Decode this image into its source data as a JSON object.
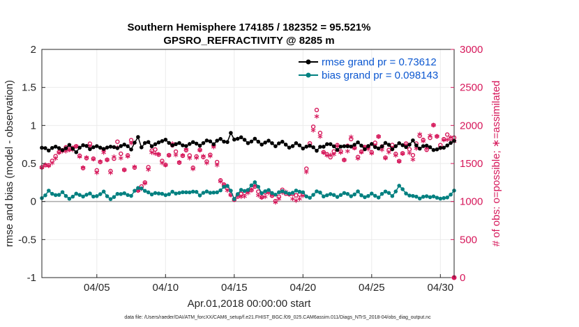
{
  "chart_data": {
    "type": "line",
    "title_line1": "Southern Hemisphere 174185 / 182352 = 95.521%",
    "title_line2": "GPSRO_REFRACTIVITY @ 8285 m",
    "ylabel_left": "rmse and bias (model - observation)",
    "ylabel_right": "# of obs: o=possible; ∗=assimilated",
    "xlabel": "Apr.01,2018 00:00:00 start",
    "footnote": "data file: /Users/raeder/DAI/ATM_forcXX/CAM6_setup/f.e21.FHIST_BGC.f09_025.CAM6assim.011/Diags_NTrS_2018-04/obs_diag_output.nc",
    "x_range": [
      1,
      31
    ],
    "ylim_left": [
      -1,
      2
    ],
    "ylim_right": [
      0,
      3000
    ],
    "y_ticks_left": [
      "-1",
      "-0.5",
      "0",
      "0.5",
      "1",
      "1.5",
      "2"
    ],
    "y_ticks_right": [
      "0",
      "500",
      "1000",
      "1500",
      "2000",
      "2500",
      "3000"
    ],
    "x_ticks": [
      {
        "value": 5,
        "label": "04/05"
      },
      {
        "value": 10,
        "label": "04/10"
      },
      {
        "value": 15,
        "label": "04/15"
      },
      {
        "value": 20,
        "label": "04/20"
      },
      {
        "value": 25,
        "label": "04/25"
      },
      {
        "value": 30,
        "label": "04/30"
      }
    ],
    "legend": [
      "rmse grand pr = 0.73612",
      "bias grand pr = 0.098143"
    ],
    "colors": {
      "rmse": "#000000",
      "bias": "#008080",
      "count": "#d6175a",
      "zero_line": "#aaaaaa"
    },
    "series": [
      {
        "name": "rmse",
        "anchors": [
          [
            1.0,
            0.71
          ],
          [
            1.5,
            0.67
          ],
          [
            2.0,
            0.72
          ],
          [
            2.5,
            0.69
          ],
          [
            3.0,
            0.73
          ],
          [
            3.5,
            0.66
          ],
          [
            4.0,
            0.74
          ],
          [
            4.5,
            0.7
          ],
          [
            5.0,
            0.72
          ],
          [
            5.5,
            0.7
          ],
          [
            6.0,
            0.73
          ],
          [
            6.5,
            0.69
          ],
          [
            7.0,
            0.75
          ],
          [
            7.5,
            0.68
          ],
          [
            8.0,
            0.84
          ],
          [
            8.3,
            0.7
          ],
          [
            8.6,
            0.8
          ],
          [
            9.0,
            0.72
          ],
          [
            9.5,
            0.77
          ],
          [
            10.0,
            0.8
          ],
          [
            10.5,
            0.73
          ],
          [
            11.0,
            0.78
          ],
          [
            11.5,
            0.72
          ],
          [
            12.0,
            0.79
          ],
          [
            12.5,
            0.74
          ],
          [
            13.0,
            0.8
          ],
          [
            13.5,
            0.76
          ],
          [
            14.0,
            0.82
          ],
          [
            14.5,
            0.78
          ],
          [
            14.8,
            0.91
          ],
          [
            15.0,
            0.82
          ],
          [
            15.5,
            0.85
          ],
          [
            16.0,
            0.78
          ],
          [
            16.5,
            0.82
          ],
          [
            17.0,
            0.74
          ],
          [
            17.5,
            0.8
          ],
          [
            18.0,
            0.72
          ],
          [
            18.5,
            0.79
          ],
          [
            19.0,
            0.72
          ],
          [
            19.5,
            0.76
          ],
          [
            20.0,
            0.7
          ],
          [
            20.5,
            0.74
          ],
          [
            21.0,
            0.68
          ],
          [
            21.5,
            0.73
          ],
          [
            22.0,
            0.76
          ],
          [
            22.5,
            0.69
          ],
          [
            23.0,
            0.74
          ],
          [
            23.5,
            0.72
          ],
          [
            24.0,
            0.79
          ],
          [
            24.5,
            0.69
          ],
          [
            25.0,
            0.76
          ],
          [
            25.5,
            0.7
          ],
          [
            26.0,
            0.77
          ],
          [
            26.5,
            0.7
          ],
          [
            27.0,
            0.77
          ],
          [
            27.5,
            0.71
          ],
          [
            28.0,
            0.79
          ],
          [
            28.5,
            0.7
          ],
          [
            29.0,
            0.74
          ],
          [
            29.5,
            0.68
          ],
          [
            30.0,
            0.7
          ],
          [
            30.5,
            0.73
          ],
          [
            31.0,
            0.79
          ]
        ]
      },
      {
        "name": "bias",
        "anchors": [
          [
            1.0,
            0.05
          ],
          [
            1.5,
            0.13
          ],
          [
            2.0,
            0.08
          ],
          [
            2.5,
            0.11
          ],
          [
            3.0,
            0.04
          ],
          [
            3.5,
            0.09
          ],
          [
            4.0,
            0.07
          ],
          [
            4.5,
            0.1
          ],
          [
            5.0,
            0.06
          ],
          [
            5.5,
            0.12
          ],
          [
            6.0,
            0.04
          ],
          [
            6.5,
            0.09
          ],
          [
            7.0,
            0.1
          ],
          [
            7.5,
            0.08
          ],
          [
            8.0,
            0.19
          ],
          [
            8.5,
            0.14
          ],
          [
            9.0,
            0.1
          ],
          [
            9.5,
            0.12
          ],
          [
            10.0,
            0.09
          ],
          [
            10.5,
            0.13
          ],
          [
            11.0,
            0.1
          ],
          [
            11.5,
            0.12
          ],
          [
            12.0,
            0.14
          ],
          [
            12.5,
            0.09
          ],
          [
            13.0,
            0.13
          ],
          [
            13.5,
            0.11
          ],
          [
            14.0,
            0.16
          ],
          [
            14.5,
            0.2
          ],
          [
            14.8,
            0.12
          ],
          [
            15.0,
            0.03
          ],
          [
            15.5,
            0.14
          ],
          [
            16.0,
            0.16
          ],
          [
            16.5,
            0.24
          ],
          [
            17.0,
            0.12
          ],
          [
            17.5,
            0.15
          ],
          [
            18.0,
            0.1
          ],
          [
            18.5,
            0.15
          ],
          [
            19.0,
            0.09
          ],
          [
            19.5,
            0.14
          ],
          [
            20.0,
            0.11
          ],
          [
            20.5,
            0.04
          ],
          [
            21.0,
            0.13
          ],
          [
            21.5,
            0.08
          ],
          [
            22.0,
            0.1
          ],
          [
            22.5,
            0.06
          ],
          [
            23.0,
            0.1
          ],
          [
            23.5,
            0.08
          ],
          [
            24.0,
            0.13
          ],
          [
            24.5,
            0.05
          ],
          [
            25.0,
            0.11
          ],
          [
            25.5,
            0.06
          ],
          [
            26.0,
            0.12
          ],
          [
            26.5,
            0.08
          ],
          [
            27.0,
            0.2
          ],
          [
            27.5,
            0.1
          ],
          [
            28.0,
            0.08
          ],
          [
            28.5,
            0.04
          ],
          [
            29.0,
            0.07
          ],
          [
            29.5,
            0.06
          ],
          [
            30.0,
            0.03
          ],
          [
            30.5,
            0.05
          ],
          [
            31.0,
            0.13
          ]
        ]
      },
      {
        "name": "obs possible",
        "anchors": [
          [
            1.0,
            1450
          ],
          [
            1.5,
            1500
          ],
          [
            2.0,
            1600
          ],
          [
            2.5,
            1700
          ],
          [
            3.0,
            1680
          ],
          [
            3.5,
            1740
          ],
          [
            4.0,
            1430
          ],
          [
            4.5,
            1760
          ],
          [
            5.0,
            1400
          ],
          [
            5.5,
            1680
          ],
          [
            6.0,
            1420
          ],
          [
            6.5,
            1760
          ],
          [
            7.0,
            1440
          ],
          [
            7.5,
            1780
          ],
          [
            8.0,
            1150
          ],
          [
            8.5,
            1240
          ],
          [
            9.0,
            1690
          ],
          [
            9.5,
            1620
          ],
          [
            10.0,
            1480
          ],
          [
            10.5,
            1760
          ],
          [
            11.0,
            1520
          ],
          [
            11.5,
            1700
          ],
          [
            12.0,
            1460
          ],
          [
            12.5,
            1680
          ],
          [
            13.0,
            1520
          ],
          [
            13.5,
            1720
          ],
          [
            14.0,
            1300
          ],
          [
            14.5,
            1180
          ],
          [
            15.0,
            1050
          ],
          [
            15.5,
            1090
          ],
          [
            16.0,
            1120
          ],
          [
            16.5,
            1200
          ],
          [
            17.0,
            1060
          ],
          [
            17.5,
            1140
          ],
          [
            18.0,
            1020
          ],
          [
            18.5,
            1140
          ],
          [
            19.0,
            1110
          ],
          [
            19.5,
            1060
          ],
          [
            20.0,
            1070
          ],
          [
            20.5,
            1750
          ],
          [
            21.0,
            2200
          ],
          [
            21.5,
            1660
          ],
          [
            22.0,
            1600
          ],
          [
            22.5,
            1730
          ],
          [
            23.0,
            1560
          ],
          [
            23.5,
            1850
          ],
          [
            24.0,
            1580
          ],
          [
            24.5,
            1740
          ],
          [
            25.0,
            1650
          ],
          [
            25.5,
            1850
          ],
          [
            26.0,
            1600
          ],
          [
            26.5,
            1720
          ],
          [
            27.0,
            1560
          ],
          [
            27.5,
            1750
          ],
          [
            28.0,
            1600
          ],
          [
            28.5,
            1880
          ],
          [
            29.0,
            1700
          ],
          [
            29.5,
            2030
          ],
          [
            30.0,
            1740
          ],
          [
            30.5,
            1860
          ],
          [
            31.0,
            1840
          ]
        ]
      },
      {
        "name": "obs assimilated",
        "anchors": [
          [
            1.0,
            1420
          ],
          [
            1.5,
            1460
          ],
          [
            2.0,
            1560
          ],
          [
            2.5,
            1660
          ],
          [
            3.0,
            1640
          ],
          [
            3.5,
            1700
          ],
          [
            4.0,
            1400
          ],
          [
            4.5,
            1720
          ],
          [
            5.0,
            1360
          ],
          [
            5.5,
            1640
          ],
          [
            6.0,
            1380
          ],
          [
            6.5,
            1720
          ],
          [
            7.0,
            1400
          ],
          [
            7.5,
            1740
          ],
          [
            8.0,
            1110
          ],
          [
            8.5,
            1200
          ],
          [
            9.0,
            1650
          ],
          [
            9.5,
            1580
          ],
          [
            10.0,
            1440
          ],
          [
            10.5,
            1720
          ],
          [
            11.0,
            1480
          ],
          [
            11.5,
            1660
          ],
          [
            12.0,
            1420
          ],
          [
            12.5,
            1640
          ],
          [
            13.0,
            1480
          ],
          [
            13.5,
            1680
          ],
          [
            14.0,
            1260
          ],
          [
            14.5,
            1140
          ],
          [
            15.0,
            1010
          ],
          [
            15.5,
            1050
          ],
          [
            16.0,
            1080
          ],
          [
            16.5,
            1160
          ],
          [
            17.0,
            1020
          ],
          [
            17.5,
            1100
          ],
          [
            18.0,
            980
          ],
          [
            18.5,
            1100
          ],
          [
            19.0,
            1070
          ],
          [
            19.5,
            1020
          ],
          [
            20.0,
            1030
          ],
          [
            20.5,
            1710
          ],
          [
            21.0,
            2100
          ],
          [
            21.5,
            1620
          ],
          [
            22.0,
            1560
          ],
          [
            22.5,
            1690
          ],
          [
            23.0,
            1520
          ],
          [
            23.5,
            1810
          ],
          [
            24.0,
            1540
          ],
          [
            24.5,
            1700
          ],
          [
            25.0,
            1610
          ],
          [
            25.5,
            1810
          ],
          [
            26.0,
            1560
          ],
          [
            26.5,
            1680
          ],
          [
            27.0,
            1520
          ],
          [
            27.5,
            1710
          ],
          [
            28.0,
            1560
          ],
          [
            28.5,
            1840
          ],
          [
            29.0,
            1660
          ],
          [
            29.5,
            1990
          ],
          [
            30.0,
            1700
          ],
          [
            30.5,
            1820
          ],
          [
            31.0,
            1800
          ]
        ]
      }
    ]
  }
}
